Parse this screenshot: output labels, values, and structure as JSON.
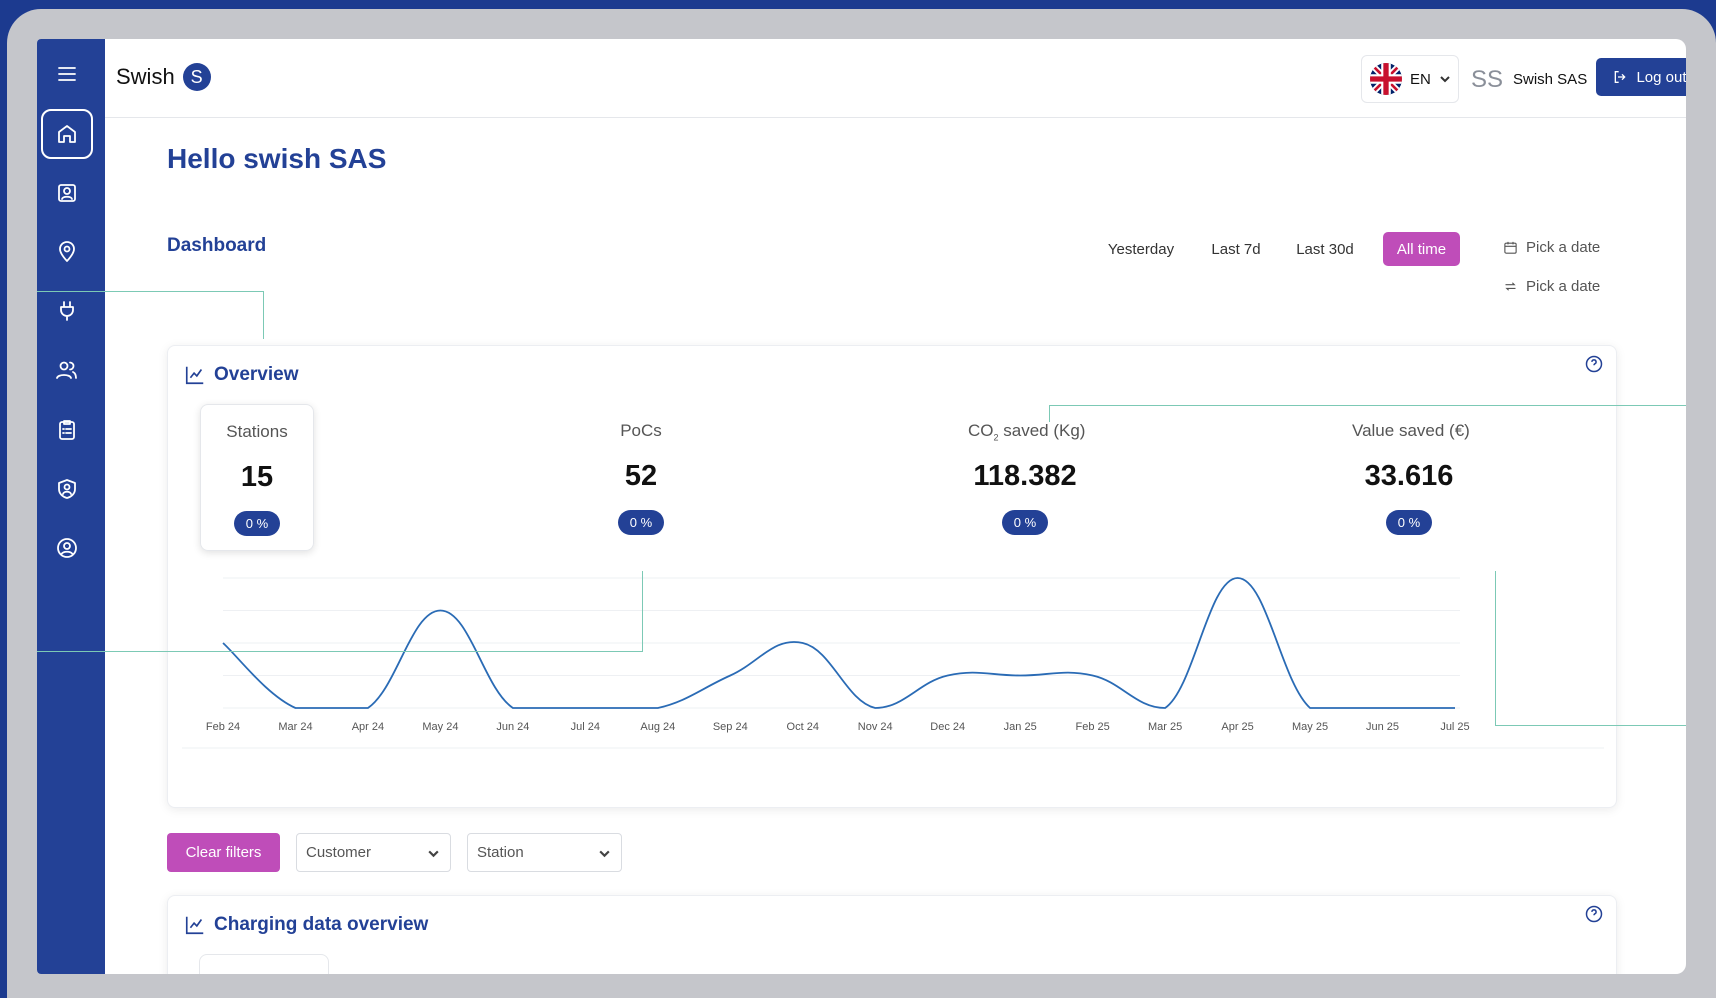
{
  "brand": {
    "name": "Swish",
    "logo_letter": "S"
  },
  "header": {
    "language": "EN",
    "initials": "SS",
    "user_name": "Swish SAS",
    "logout_label": "Log out"
  },
  "sidebar": {
    "items": [
      {
        "name": "home",
        "icon": "home-icon",
        "active": true
      },
      {
        "name": "contacts",
        "icon": "contact-card-icon"
      },
      {
        "name": "locations",
        "icon": "map-pin-icon"
      },
      {
        "name": "chargers",
        "icon": "plug-icon"
      },
      {
        "name": "users",
        "icon": "users-icon"
      },
      {
        "name": "reports",
        "icon": "clipboard-icon"
      },
      {
        "name": "security",
        "icon": "shield-user-icon"
      },
      {
        "name": "account",
        "icon": "user-circle-icon"
      }
    ]
  },
  "page": {
    "greeting": "Hello swish SAS",
    "dashboard_title": "Dashboard",
    "ranges": [
      "Yesterday",
      "Last 7d",
      "Last 30d",
      "All time"
    ],
    "active_range": "All time",
    "pick_date_1": "Pick a date",
    "pick_date_2": "Pick a date"
  },
  "overview": {
    "title": "Overview",
    "kpis": [
      {
        "label": "Stations",
        "value": "15",
        "change": "0 %"
      },
      {
        "label": "PoCs",
        "value": "52",
        "change": "0 %"
      },
      {
        "label_main": "CO",
        "label_sub": "2",
        "label_rest": " saved (Kg)",
        "value": "118.382",
        "change": "0 %"
      },
      {
        "label": "Value saved (€)",
        "value": "33.616",
        "change": "0 %"
      }
    ]
  },
  "chart_data": {
    "type": "line",
    "categories": [
      "Feb 24",
      "Mar 24",
      "Apr 24",
      "May 24",
      "Jun 24",
      "Jul 24",
      "Aug 24",
      "Sep 24",
      "Oct 24",
      "Nov 24",
      "Dec 24",
      "Jan 25",
      "Feb 25",
      "Mar 25",
      "Apr 25",
      "May 25",
      "Jun 25",
      "Jul 25"
    ],
    "values": [
      2,
      0,
      0,
      3,
      0,
      0,
      0,
      1,
      2,
      0,
      1,
      1,
      1,
      0,
      4,
      0,
      0,
      0
    ],
    "ylim": [
      0,
      4
    ],
    "grid": true,
    "color": "#2a6bb5"
  },
  "filters": {
    "clear_label": "Clear filters",
    "customer_placeholder": "Customer",
    "station_placeholder": "Station"
  },
  "charging": {
    "title": "Charging data overview"
  },
  "colors": {
    "primary": "#234196",
    "accent": "#bf4db9"
  }
}
